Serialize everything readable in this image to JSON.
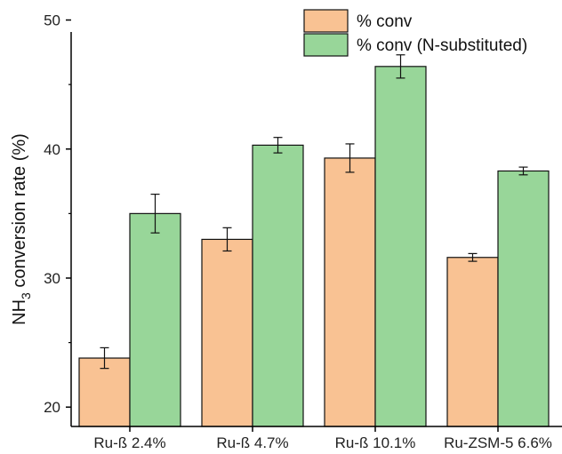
{
  "chart_data": {
    "type": "bar",
    "categories": [
      "Ru-ß 2.4%",
      "Ru-ß 4.7%",
      "Ru-ß 10.1%",
      "Ru-ZSM-5 6.6%"
    ],
    "series": [
      {
        "name": "% conv",
        "color": "#f9c293",
        "values": [
          23.8,
          33.0,
          39.3,
          31.6
        ],
        "errors": [
          0.8,
          0.9,
          1.1,
          0.3
        ]
      },
      {
        "name": "% conv (N-substituted)",
        "color": "#98d699",
        "values": [
          35.0,
          40.3,
          46.4,
          38.3
        ],
        "errors": [
          1.5,
          0.6,
          0.9,
          0.3
        ]
      }
    ],
    "ylabel_main": "NH",
    "ylabel_sub": "3",
    "ylabel_rest": " conversion rate (%)",
    "ylim": [
      18.5,
      51
    ],
    "yticks": [
      20,
      30,
      40,
      50
    ],
    "legend_position": "top-right",
    "grid": false
  }
}
